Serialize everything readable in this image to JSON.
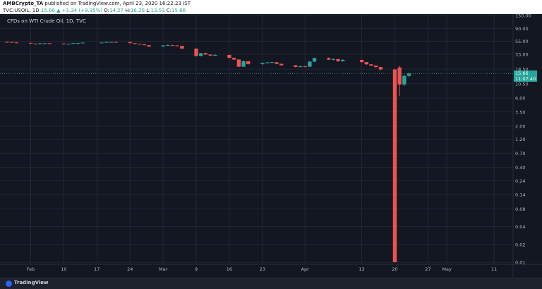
{
  "header": {
    "author": "AMBCrypto_TA",
    "published": " published on TradingView.com, April 23, 2020 16:22:23 IST",
    "symbol": "TVC:USOIL, 1D",
    "last": "15.66",
    "change": "+1.34 (+9.35%)",
    "o_label": "O:",
    "o_value": "14.27",
    "h_label": "H:",
    "h_value": "16.20",
    "l_label": "L:",
    "l_value": "13.53",
    "c_label": "C:",
    "c_value": "15.66"
  },
  "legend": {
    "title": "CFDs on WTI Crude Oil, 1D, TVC"
  },
  "price_tag": {
    "price": "15.66",
    "countdown": "11:07:40"
  },
  "footer": {
    "brand": "TradingView"
  },
  "colors": {
    "up": "#26a69a",
    "down": "#ef5350",
    "background": "#131722",
    "grid": "#232733",
    "axis_text": "#b2b5be"
  },
  "chart_data": {
    "type": "candlestick",
    "title": "CFDs on WTI Crude Oil, 1D, TVC",
    "y_scale": "log",
    "y_ticks": [
      150.0,
      90.0,
      55.0,
      33.0,
      18.5,
      10.5,
      6.0,
      3.5,
      2.0,
      1.2,
      0.7,
      0.4,
      0.24,
      0.14,
      0.08,
      0.04,
      0.02,
      0.01
    ],
    "y_tick_labels": [
      "150.00",
      "90.00",
      "55.00",
      "33.00",
      "18.50",
      "10.50",
      "6.00",
      "3.50",
      "2.00",
      "1.20",
      "0.70",
      "0.40",
      "0.24",
      "0.14",
      "0.08",
      "0.04",
      "0.02",
      "0.01"
    ],
    "x_ticks": [
      {
        "label": "Feb",
        "date": "2020-02-03"
      },
      {
        "label": "10",
        "date": "2020-02-10"
      },
      {
        "label": "17",
        "date": "2020-02-17"
      },
      {
        "label": "24",
        "date": "2020-02-24"
      },
      {
        "label": "Mar",
        "date": "2020-03-02"
      },
      {
        "label": "9",
        "date": "2020-03-09"
      },
      {
        "label": "16",
        "date": "2020-03-16"
      },
      {
        "label": "23",
        "date": "2020-03-23"
      },
      {
        "label": "Apr",
        "date": "2020-04-01"
      },
      {
        "label": "13",
        "date": "2020-04-13"
      },
      {
        "label": "20",
        "date": "2020-04-20"
      },
      {
        "label": "27",
        "date": "2020-04-27"
      },
      {
        "label": "May",
        "date": "2020-05-01"
      },
      {
        "label": "11",
        "date": "2020-05-11"
      }
    ],
    "x_range": [
      "2020-01-29",
      "2020-05-15"
    ],
    "grid": true,
    "current_price": 15.66,
    "candles": [
      {
        "d": "2020-01-29",
        "o": 53.5,
        "h": 54.0,
        "l": 52.8,
        "c": 53.3
      },
      {
        "d": "2020-01-30",
        "o": 53.3,
        "h": 53.6,
        "l": 52.2,
        "c": 52.4
      },
      {
        "d": "2020-01-31",
        "o": 52.4,
        "h": 52.8,
        "l": 51.3,
        "c": 51.6
      },
      {
        "d": "2020-02-03",
        "o": 51.6,
        "h": 51.9,
        "l": 49.9,
        "c": 50.1
      },
      {
        "d": "2020-02-04",
        "o": 50.1,
        "h": 50.6,
        "l": 49.4,
        "c": 49.6
      },
      {
        "d": "2020-02-05",
        "o": 49.6,
        "h": 51.2,
        "l": 49.4,
        "c": 50.8
      },
      {
        "d": "2020-02-06",
        "o": 50.8,
        "h": 51.4,
        "l": 50.2,
        "c": 50.9
      },
      {
        "d": "2020-02-07",
        "o": 50.9,
        "h": 51.0,
        "l": 49.8,
        "c": 50.3
      },
      {
        "d": "2020-02-10",
        "o": 50.3,
        "h": 50.6,
        "l": 49.4,
        "c": 49.6
      },
      {
        "d": "2020-02-11",
        "o": 49.6,
        "h": 50.1,
        "l": 49.2,
        "c": 49.9
      },
      {
        "d": "2020-02-12",
        "o": 49.9,
        "h": 51.5,
        "l": 49.8,
        "c": 51.2
      },
      {
        "d": "2020-02-13",
        "o": 51.2,
        "h": 51.7,
        "l": 50.8,
        "c": 51.3
      },
      {
        "d": "2020-02-14",
        "o": 51.3,
        "h": 52.2,
        "l": 51.2,
        "c": 52.0
      },
      {
        "d": "2020-02-18",
        "o": 52.0,
        "h": 52.5,
        "l": 51.5,
        "c": 52.2
      },
      {
        "d": "2020-02-19",
        "o": 52.2,
        "h": 53.4,
        "l": 52.0,
        "c": 53.2
      },
      {
        "d": "2020-02-20",
        "o": 53.2,
        "h": 53.8,
        "l": 52.9,
        "c": 53.5
      },
      {
        "d": "2020-02-21",
        "o": 53.5,
        "h": 53.6,
        "l": 52.8,
        "c": 53.2
      },
      {
        "d": "2020-02-24",
        "o": 53.2,
        "h": 53.3,
        "l": 50.9,
        "c": 51.1
      },
      {
        "d": "2020-02-25",
        "o": 51.1,
        "h": 51.4,
        "l": 49.8,
        "c": 49.9
      },
      {
        "d": "2020-02-26",
        "o": 49.9,
        "h": 50.2,
        "l": 48.5,
        "c": 48.7
      },
      {
        "d": "2020-02-27",
        "o": 48.7,
        "h": 48.9,
        "l": 46.8,
        "c": 47.1
      },
      {
        "d": "2020-02-28",
        "o": 47.1,
        "h": 47.3,
        "l": 44.2,
        "c": 44.8
      },
      {
        "d": "2020-03-02",
        "o": 44.8,
        "h": 47.1,
        "l": 44.5,
        "c": 46.7
      },
      {
        "d": "2020-03-03",
        "o": 46.7,
        "h": 48.6,
        "l": 46.5,
        "c": 47.2
      },
      {
        "d": "2020-03-04",
        "o": 47.2,
        "h": 47.8,
        "l": 46.2,
        "c": 46.8
      },
      {
        "d": "2020-03-05",
        "o": 46.8,
        "h": 46.9,
        "l": 45.3,
        "c": 45.9
      },
      {
        "d": "2020-03-06",
        "o": 45.9,
        "h": 46.0,
        "l": 40.8,
        "c": 41.3
      },
      {
        "d": "2020-03-09",
        "o": 41.3,
        "h": 41.5,
        "l": 30.1,
        "c": 31.1
      },
      {
        "d": "2020-03-10",
        "o": 31.1,
        "h": 35.0,
        "l": 30.5,
        "c": 34.5
      },
      {
        "d": "2020-03-11",
        "o": 34.5,
        "h": 35.2,
        "l": 32.3,
        "c": 32.8
      },
      {
        "d": "2020-03-12",
        "o": 32.8,
        "h": 33.0,
        "l": 30.6,
        "c": 31.5
      },
      {
        "d": "2020-03-13",
        "o": 31.5,
        "h": 33.5,
        "l": 30.9,
        "c": 32.2
      },
      {
        "d": "2020-03-16",
        "o": 32.2,
        "h": 32.4,
        "l": 28.5,
        "c": 28.8
      },
      {
        "d": "2020-03-17",
        "o": 28.8,
        "h": 29.2,
        "l": 26.4,
        "c": 27.0
      },
      {
        "d": "2020-03-18",
        "o": 27.0,
        "h": 27.2,
        "l": 20.0,
        "c": 20.4
      },
      {
        "d": "2020-03-19",
        "o": 20.4,
        "h": 26.3,
        "l": 20.1,
        "c": 25.2
      },
      {
        "d": "2020-03-20",
        "o": 25.2,
        "h": 25.6,
        "l": 22.2,
        "c": 22.6
      },
      {
        "d": "2020-03-23",
        "o": 22.6,
        "h": 24.1,
        "l": 21.8,
        "c": 23.6
      },
      {
        "d": "2020-03-24",
        "o": 23.6,
        "h": 24.5,
        "l": 23.1,
        "c": 24.1
      },
      {
        "d": "2020-03-25",
        "o": 24.1,
        "h": 24.6,
        "l": 23.4,
        "c": 24.3
      },
      {
        "d": "2020-03-26",
        "o": 24.3,
        "h": 24.4,
        "l": 22.6,
        "c": 22.8
      },
      {
        "d": "2020-03-27",
        "o": 22.8,
        "h": 23.0,
        "l": 21.3,
        "c": 21.5
      },
      {
        "d": "2020-03-30",
        "o": 21.5,
        "h": 21.7,
        "l": 19.9,
        "c": 20.2
      },
      {
        "d": "2020-03-31",
        "o": 20.2,
        "h": 21.3,
        "l": 19.9,
        "c": 20.7
      },
      {
        "d": "2020-04-01",
        "o": 20.7,
        "h": 21.0,
        "l": 20.0,
        "c": 20.4
      },
      {
        "d": "2020-04-02",
        "o": 20.4,
        "h": 25.2,
        "l": 20.2,
        "c": 24.9
      },
      {
        "d": "2020-04-03",
        "o": 24.9,
        "h": 29.0,
        "l": 24.5,
        "c": 28.5
      },
      {
        "d": "2020-04-06",
        "o": 28.5,
        "h": 29.2,
        "l": 26.5,
        "c": 26.9
      },
      {
        "d": "2020-04-07",
        "o": 26.9,
        "h": 28.2,
        "l": 26.2,
        "c": 27.4
      },
      {
        "d": "2020-04-08",
        "o": 27.4,
        "h": 27.6,
        "l": 24.8,
        "c": 25.2
      },
      {
        "d": "2020-04-09",
        "o": 25.2,
        "h": 27.5,
        "l": 24.9,
        "c": 26.5
      },
      {
        "d": "2020-04-13",
        "o": 26.5,
        "h": 26.8,
        "l": 23.9,
        "c": 24.4
      },
      {
        "d": "2020-04-14",
        "o": 24.4,
        "h": 24.6,
        "l": 22.0,
        "c": 22.4
      },
      {
        "d": "2020-04-15",
        "o": 22.4,
        "h": 22.6,
        "l": 20.9,
        "c": 21.3
      },
      {
        "d": "2020-04-16",
        "o": 21.3,
        "h": 21.5,
        "l": 19.8,
        "c": 20.1
      },
      {
        "d": "2020-04-17",
        "o": 20.1,
        "h": 20.3,
        "l": 17.8,
        "c": 18.3
      },
      {
        "d": "2020-04-20",
        "o": 18.3,
        "h": 18.5,
        "l": 0.01,
        "c": 0.01
      },
      {
        "d": "2020-04-21",
        "o": 19.8,
        "h": 21.0,
        "l": 6.5,
        "c": 10.2
      },
      {
        "d": "2020-04-22",
        "o": 10.2,
        "h": 14.8,
        "l": 9.6,
        "c": 14.3
      },
      {
        "d": "2020-04-23",
        "o": 14.27,
        "h": 16.2,
        "l": 13.53,
        "c": 15.66
      }
    ]
  }
}
